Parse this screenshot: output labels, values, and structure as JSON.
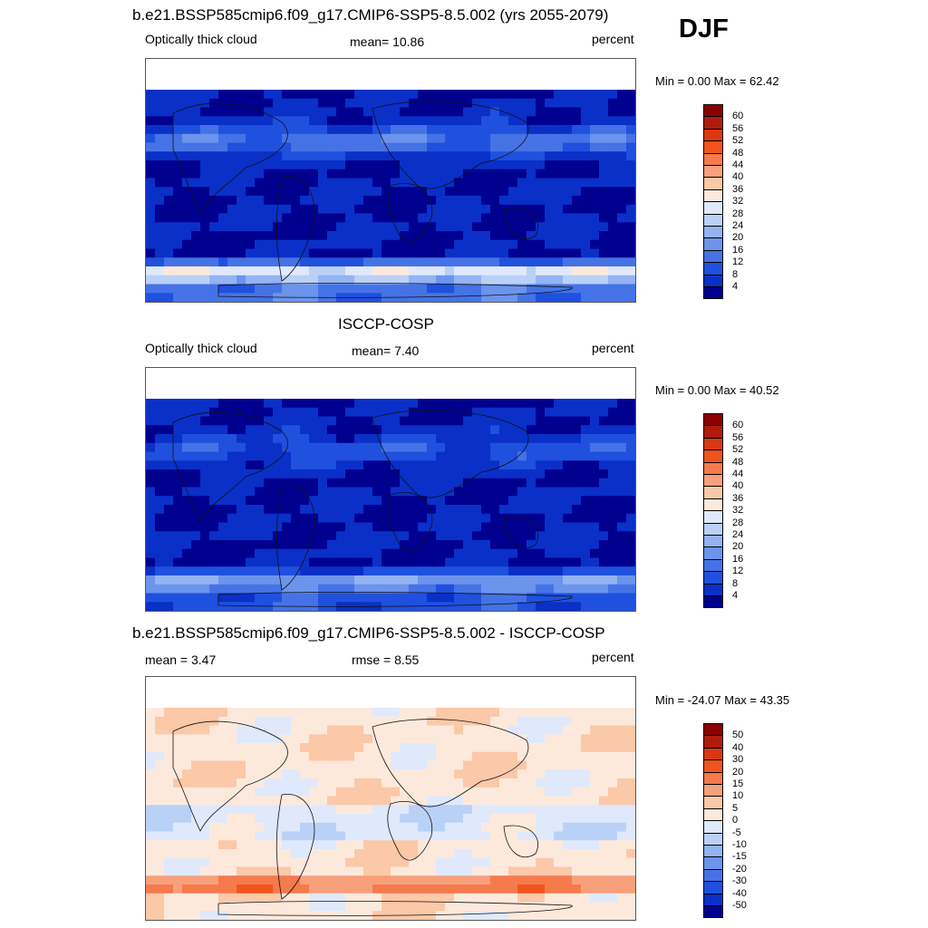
{
  "season": "DJF",
  "panels": [
    {
      "title": "b.e21.BSSP585cmip6.f09_g17.CMIP6-SSP5-8.5.002 (yrs 2055-2079)",
      "left_label": "Optically thick cloud",
      "center_label": "mean=  10.86",
      "right_label": "percent",
      "minmax": "Min =   0.00 Max =  62.42",
      "map_name": "model-map",
      "scheme": "seq",
      "intensity": 1.0
    },
    {
      "title": "ISCCP-COSP",
      "left_label": "Optically thick cloud",
      "center_label": "mean=   7.40",
      "right_label": "percent",
      "minmax": "Min =   0.00 Max =  40.52",
      "map_name": "obs-map",
      "scheme": "seq",
      "intensity": 0.6
    },
    {
      "title": "b.e21.BSSP585cmip6.f09_g17.CMIP6-SSP5-8.5.002 - ISCCP-COSP",
      "left_label": "mean =   3.47",
      "center_label": "rmse =   8.55",
      "right_label": "percent",
      "minmax": "Min = -24.07 Max =  43.35",
      "map_name": "diff-map",
      "scheme": "div",
      "intensity": 1.0
    }
  ],
  "colorbars": {
    "seq": {
      "labels": [
        "60",
        "56",
        "52",
        "48",
        "44",
        "40",
        "36",
        "32",
        "28",
        "24",
        "20",
        "16",
        "12",
        "8",
        "4"
      ],
      "colors": [
        "#8b0000",
        "#b01c0c",
        "#d93812",
        "#f0551e",
        "#f57a4c",
        "#f8a07c",
        "#fbc8a8",
        "#fde9dc",
        "#dfe9fb",
        "#bad1f7",
        "#93b3f2",
        "#6c94ec",
        "#4573e6",
        "#2050de",
        "#0a30c8",
        "#00008f"
      ]
    },
    "div": {
      "labels": [
        "50",
        "40",
        "30",
        "20",
        "15",
        "10",
        "5",
        "0",
        "-5",
        "-10",
        "-15",
        "-20",
        "-30",
        "-40",
        "-50"
      ],
      "colors": [
        "#8b0000",
        "#b01c0c",
        "#d93812",
        "#f0551e",
        "#f57a4c",
        "#f8a07c",
        "#fbc8a8",
        "#fde9dc",
        "#dfe9fb",
        "#bad1f7",
        "#93b3f2",
        "#6c94ec",
        "#4573e6",
        "#2050de",
        "#0a30c8",
        "#00008f"
      ]
    }
  }
}
